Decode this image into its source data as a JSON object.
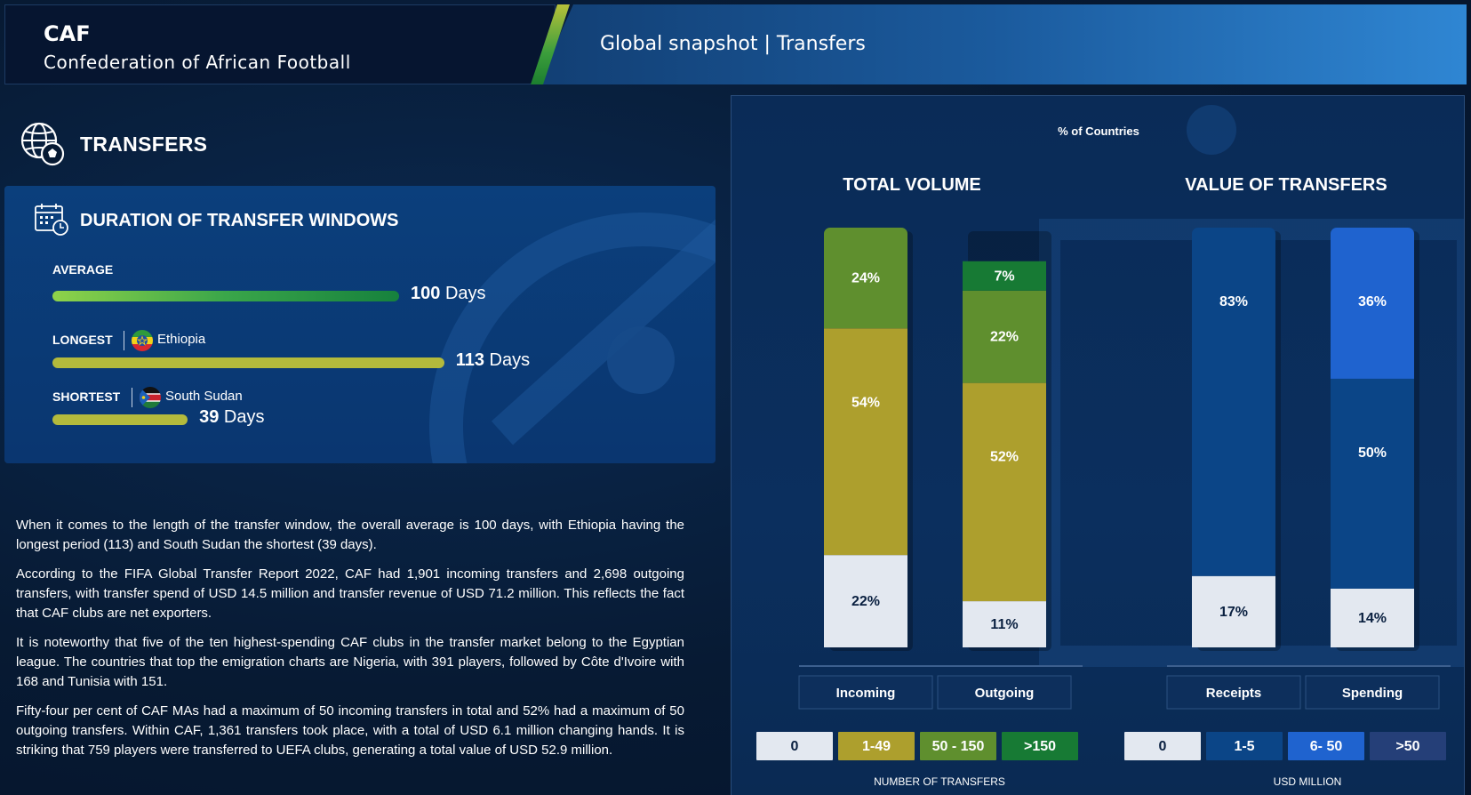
{
  "header": {
    "abbr": "CAF",
    "name": "Confederation of African Football",
    "title": "Global snapshot | Transfers"
  },
  "section_title": "TRANSFERS",
  "duration": {
    "title": "DURATION OF TRANSFER WINDOWS",
    "average": {
      "label": "AVERAGE",
      "value": "100",
      "unit": "Days",
      "days": 100
    },
    "longest": {
      "label": "LONGEST",
      "country": "Ethiopia",
      "value": "113",
      "unit": "Days",
      "days": 113
    },
    "shortest": {
      "label": "SHORTEST",
      "country": "South Sudan",
      "value": "39",
      "unit": "Days",
      "days": 39
    }
  },
  "paragraphs": [
    "When it comes to the length of the transfer window, the overall average is 100 days, with Ethiopia having the longest period (113) and South Sudan the shortest (39 days).",
    "According to the FIFA Global Transfer Report 2022, CAF had 1,901 incoming transfers and 2,698 outgoing transfers, with transfer spend of USD 14.5 million and transfer revenue of USD 71.2 million. This reflects the fact that CAF clubs are net exporters.",
    "It is noteworthy that five of the ten highest-spending CAF clubs in the transfer market belong to the Egyptian league. The countries that top the emigration charts are Nigeria, with 391 players, followed by Côte d'Ivoire with 168 and Tunisia with 151.",
    "Fifty-four per cent of CAF MAs had a maximum of 50 incoming transfers in total and 52% had a maximum of 50 outgoing transfers. Within CAF, 1,361 transfers took place, with a total of USD 6.1 million changing hands. It is striking that 759 players were transferred to UEFA clubs, generating a total value of USD 52.9 million."
  ],
  "chart_data": [
    {
      "type": "bar",
      "stacked": true,
      "title": "TOTAL VOLUME",
      "ylabel": "% of Countries",
      "categories": [
        "Incoming",
        "Outgoing"
      ],
      "series": [
        {
          "name": "0",
          "color": "#e3e8f0",
          "values": [
            22,
            11
          ]
        },
        {
          "name": "1-49",
          "color": "#ad9f2d",
          "values": [
            54,
            52
          ]
        },
        {
          "name": "50 - 150",
          "color": "#5f8f2e",
          "values": [
            24,
            22
          ]
        },
        {
          "name": ">150",
          "color": "#177a34",
          "values": [
            0,
            7
          ]
        }
      ],
      "legend_title": "NUMBER OF TRANSFERS",
      "ylim": [
        0,
        100
      ]
    },
    {
      "type": "bar",
      "stacked": true,
      "title": "VALUE OF TRANSFERS",
      "ylabel": "% of Countries",
      "categories": [
        "Receipts",
        "Spending"
      ],
      "series": [
        {
          "name": "0",
          "color": "#e3e8f0",
          "values": [
            17,
            14
          ]
        },
        {
          "name": "1-5",
          "color": "#0b4587",
          "values": [
            83,
            50
          ]
        },
        {
          "name": "6- 50",
          "color": "#1f63cf",
          "values": [
            0,
            36
          ]
        },
        {
          "name": ">50",
          "color": "#253f78",
          "values": [
            0,
            0
          ]
        }
      ],
      "legend_title": "USD MILLION",
      "ylim": [
        0,
        100
      ]
    }
  ]
}
